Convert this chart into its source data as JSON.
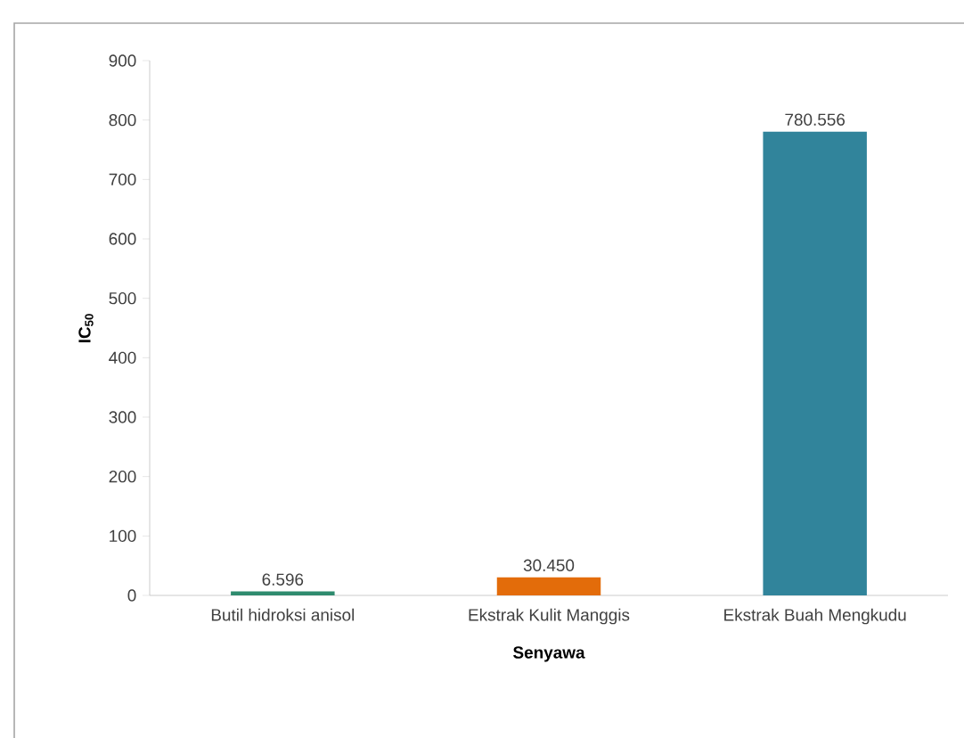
{
  "chart_data": {
    "type": "bar",
    "ylabel": "IC$_{50}$",
    "xlabel": "Senyawa",
    "categories": [
      "Butil hidroksi anisol",
      "Ekstrak Kulit Manggis",
      "Ekstrak Buah Mengkudu"
    ],
    "values": [
      6.596,
      30.45,
      780.556
    ],
    "colors": [
      "#2e8b6e",
      "#e36c0a",
      "#31849b"
    ],
    "value_labels": [
      "6.596",
      "30.450",
      "780.556"
    ],
    "ylim": [
      0,
      900
    ],
    "yticks": [
      0,
      100,
      200,
      300,
      400,
      500,
      600,
      700,
      800,
      900
    ]
  }
}
